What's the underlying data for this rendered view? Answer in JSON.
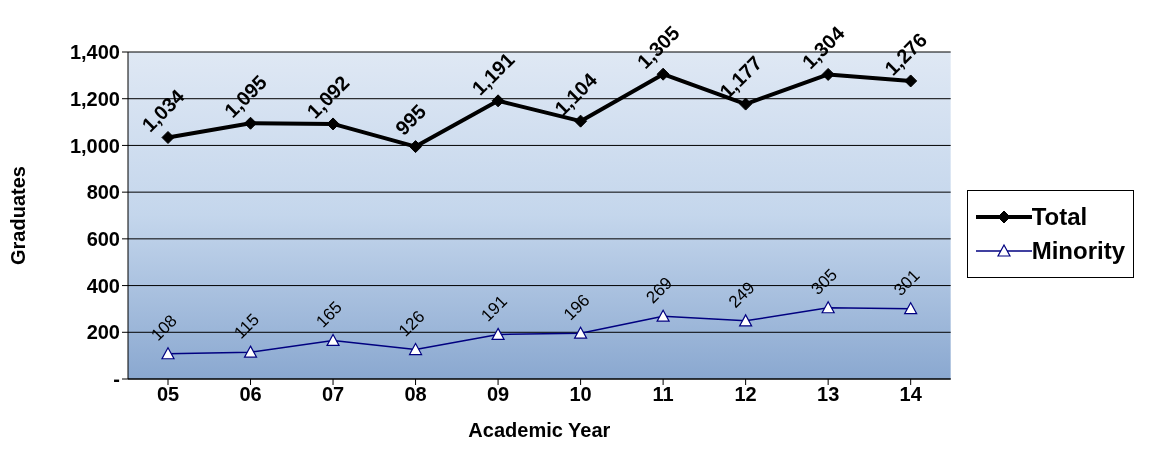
{
  "chart_data": {
    "type": "line",
    "xlabel": "Academic Year",
    "ylabel": "Graduates",
    "categories": [
      "05",
      "06",
      "07",
      "08",
      "09",
      "10",
      "11",
      "12",
      "13",
      "14"
    ],
    "series": [
      {
        "name": "Total",
        "color": "#000000",
        "marker": "diamond",
        "values": [
          1034,
          1095,
          1092,
          995,
          1191,
          1104,
          1305,
          1177,
          1304,
          1276
        ],
        "value_labels": [
          "1,034",
          "1,095",
          "1,092",
          "995",
          "1,191",
          "1,104",
          "1,305",
          "1,177",
          "1,304",
          "1,276"
        ]
      },
      {
        "name": "Minority",
        "color": "#000080",
        "marker": "triangle",
        "values": [
          108,
          115,
          165,
          126,
          191,
          196,
          269,
          249,
          305,
          301
        ],
        "value_labels": [
          "108",
          "115",
          "165",
          "126",
          "191",
          "196",
          "269",
          "249",
          "305",
          "301"
        ]
      }
    ],
    "ylim": [
      0,
      1400
    ],
    "yticks": [
      {
        "value": 0,
        "label": "-"
      },
      {
        "value": 200,
        "label": "200"
      },
      {
        "value": 400,
        "label": "400"
      },
      {
        "value": 600,
        "label": "600"
      },
      {
        "value": 800,
        "label": "800"
      },
      {
        "value": 1000,
        "label": "1,000"
      },
      {
        "value": 1200,
        "label": "1,200"
      },
      {
        "value": 1400,
        "label": "1,400"
      }
    ],
    "grid": "y",
    "legend": "right"
  }
}
